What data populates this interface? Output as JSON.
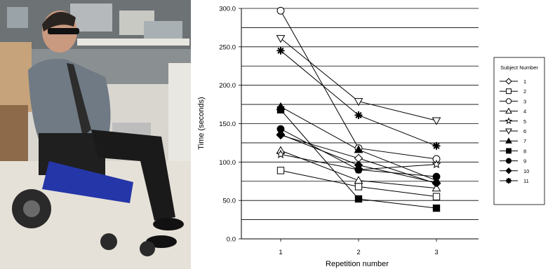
{
  "photo": {
    "alt": "Man seated in a powered wheelchair wearing head-mounted glasses in a laboratory"
  },
  "chart_data": {
    "type": "line",
    "xlabel": "Repetition number",
    "ylabel": "Time (seconds)",
    "x": [
      1,
      2,
      3
    ],
    "x_tick_labels": [
      "1",
      "2",
      "3"
    ],
    "ylim": [
      0,
      300
    ],
    "y_ticks": [
      0,
      50,
      100,
      150,
      200,
      250,
      300
    ],
    "y_tick_labels": [
      "0.0",
      "50.0",
      "100.0",
      "150.0",
      "200.0",
      "250.0",
      "300.0"
    ],
    "grid": "horizontal, every 25",
    "legend_title": "Subject Number",
    "legend_position": "right",
    "series": [
      {
        "name": "1",
        "marker": "diamond-open",
        "values": [
          135,
          105,
          72
        ]
      },
      {
        "name": "2",
        "marker": "square-open",
        "values": [
          89,
          68,
          55
        ]
      },
      {
        "name": "3",
        "marker": "circle-open",
        "values": [
          297,
          118,
          104
        ]
      },
      {
        "name": "4",
        "marker": "triangle-up-open",
        "values": [
          115,
          76,
          66
        ]
      },
      {
        "name": "5",
        "marker": "star-open",
        "values": [
          110,
          90,
          97
        ]
      },
      {
        "name": "6",
        "marker": "triangle-down-open",
        "values": [
          261,
          179,
          154
        ]
      },
      {
        "name": "7",
        "marker": "triangle-up-filled",
        "values": [
          172,
          116,
          76
        ]
      },
      {
        "name": "8",
        "marker": "square-filled",
        "values": [
          168,
          52,
          40
        ]
      },
      {
        "name": "9",
        "marker": "circle-filled",
        "values": [
          143,
          90,
          81
        ]
      },
      {
        "name": "10",
        "marker": "diamond-filled",
        "values": [
          136,
          96,
          73
        ]
      },
      {
        "name": "11",
        "marker": "asterisk",
        "values": [
          245,
          161,
          121
        ]
      }
    ]
  }
}
